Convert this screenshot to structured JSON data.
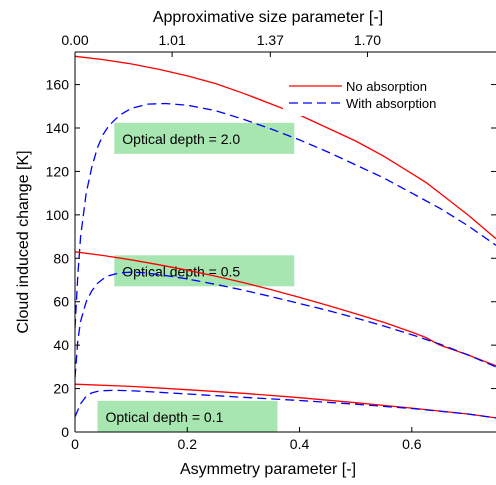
{
  "chart_data": {
    "type": "line",
    "xlabel": "Asymmetry parameter [-]",
    "ylabel": "Cloud induced change [K]",
    "x2label": "Approximative size parameter [-]",
    "xlim": [
      0,
      0.75
    ],
    "ylim": [
      0,
      175
    ],
    "xticks": [
      0,
      0.2,
      0.4,
      0.6
    ],
    "xtick_labels": [
      "0",
      "0.2",
      "0.4",
      "0.6"
    ],
    "yticks": [
      0,
      20,
      40,
      60,
      80,
      100,
      120,
      140,
      160
    ],
    "ytick_labels": [
      "0",
      "20",
      "40",
      "60",
      "80",
      "100",
      "120",
      "140",
      "160"
    ],
    "x2ticks": [
      0,
      0.173,
      0.348,
      0.521
    ],
    "x2tick_labels": [
      "0.00",
      "1.01",
      "1.37",
      "1.70"
    ],
    "grid": false,
    "legend_position": "top-right",
    "legend": [
      {
        "label": "No absorption",
        "color": "#ff0000",
        "style": "solid"
      },
      {
        "label": "With absorption",
        "color": "#0000ff",
        "style": "dashed"
      }
    ],
    "annotations": [
      {
        "text": "Optical depth = 2.0",
        "x": 0.07,
        "y": 135
      },
      {
        "text": "Optical depth = 0.5",
        "x": 0.07,
        "y": 74
      },
      {
        "text": "Optical depth = 0.1",
        "x": 0.04,
        "y": 7
      }
    ],
    "series": [
      {
        "group": "2.0",
        "kind": "no_absorption",
        "color": "#ff0000",
        "dashed": false,
        "x": [
          0,
          0.05,
          0.1,
          0.15,
          0.2,
          0.25,
          0.3,
          0.35,
          0.4,
          0.45,
          0.5,
          0.55,
          0.6,
          0.625,
          0.65,
          0.7,
          0.75
        ],
        "y": [
          173,
          171.5,
          169.5,
          167,
          164,
          160.5,
          156,
          151,
          146,
          140,
          134,
          127,
          119,
          115,
          110,
          100,
          89
        ]
      },
      {
        "group": "2.0",
        "kind": "with_absorption",
        "color": "#0000ff",
        "dashed": true,
        "x": [
          0,
          0.005,
          0.01,
          0.02,
          0.03,
          0.04,
          0.05,
          0.06,
          0.08,
          0.1,
          0.13,
          0.16,
          0.2,
          0.25,
          0.3,
          0.35,
          0.4,
          0.45,
          0.5,
          0.55,
          0.6,
          0.65,
          0.7,
          0.75
        ],
        "y": [
          48,
          72,
          90,
          110,
          122,
          131,
          137,
          141,
          146,
          149,
          151,
          151.3,
          150.5,
          148,
          144,
          139.5,
          134.5,
          129,
          123,
          117,
          110,
          103,
          95,
          86
        ]
      },
      {
        "group": "0.5",
        "kind": "no_absorption",
        "color": "#ff0000",
        "dashed": false,
        "x": [
          0,
          0.05,
          0.1,
          0.15,
          0.2,
          0.25,
          0.3,
          0.35,
          0.4,
          0.45,
          0.5,
          0.55,
          0.6,
          0.625,
          0.65,
          0.7,
          0.75
        ],
        "y": [
          83,
          81.3,
          79.3,
          77,
          74.5,
          71.8,
          68.8,
          65.5,
          62,
          58.3,
          54.5,
          50.5,
          46,
          43.5,
          40,
          35.5,
          30.5
        ]
      },
      {
        "group": "0.5",
        "kind": "with_absorption",
        "color": "#0000ff",
        "dashed": true,
        "x": [
          0,
          0.005,
          0.01,
          0.02,
          0.03,
          0.04,
          0.05,
          0.06,
          0.08,
          0.1,
          0.12,
          0.15,
          0.2,
          0.25,
          0.3,
          0.35,
          0.4,
          0.45,
          0.5,
          0.55,
          0.6,
          0.65,
          0.7,
          0.75
        ],
        "y": [
          25,
          42,
          51,
          60,
          65,
          68.5,
          70.5,
          72,
          73.3,
          73.6,
          73.4,
          72.5,
          70.5,
          68,
          65.3,
          62.3,
          59.2,
          56,
          52.5,
          48.8,
          44.8,
          40.5,
          35.5,
          30
        ]
      },
      {
        "group": "0.1",
        "kind": "no_absorption",
        "color": "#ff0000",
        "dashed": false,
        "x": [
          0,
          0.1,
          0.2,
          0.3,
          0.4,
          0.5,
          0.6,
          0.7,
          0.75
        ],
        "y": [
          22,
          21,
          19.5,
          17.8,
          15.8,
          13.5,
          11,
          8.3,
          6.5
        ]
      },
      {
        "group": "0.1",
        "kind": "with_absorption",
        "color": "#0000ff",
        "dashed": true,
        "x": [
          0,
          0.005,
          0.01,
          0.02,
          0.03,
          0.04,
          0.05,
          0.07,
          0.1,
          0.15,
          0.2,
          0.3,
          0.4,
          0.5,
          0.6,
          0.7,
          0.75
        ],
        "y": [
          7,
          10,
          13,
          16.5,
          18,
          18.7,
          19,
          19.2,
          19,
          18.3,
          17.5,
          16,
          14.5,
          12.8,
          10.8,
          8.3,
          6.5
        ]
      }
    ]
  },
  "colors": {
    "no_absorption": "#ff0000",
    "with_absorption": "#0000ff",
    "annotation_box": "#a8e6b1"
  }
}
